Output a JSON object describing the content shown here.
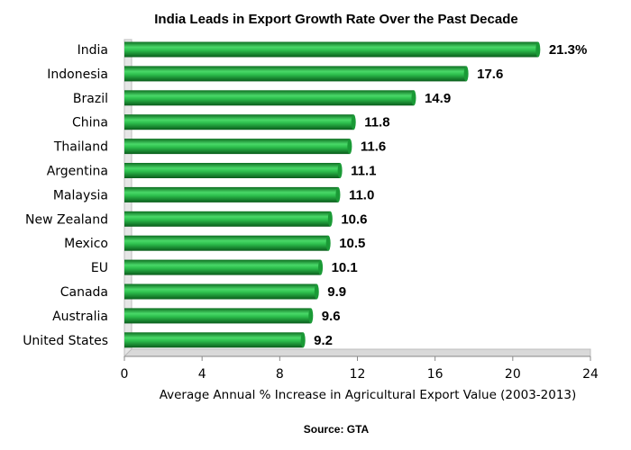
{
  "chart_data": {
    "type": "bar",
    "orientation": "horizontal",
    "title": "India Leads in Export Growth Rate Over the Past Decade",
    "xlabel": "Average Annual % Increase in Agricultural Export Value (2003-2013)",
    "source": "Source: GTA",
    "categories": [
      "India",
      "Indonesia",
      "Brazil",
      "China",
      "Thailand",
      "Argentina",
      "Malaysia",
      "New Zealand",
      "Mexico",
      "EU",
      "Canada",
      "Australia",
      "United States"
    ],
    "values": [
      21.3,
      17.6,
      14.9,
      11.8,
      11.6,
      11.1,
      11.0,
      10.6,
      10.5,
      10.1,
      9.9,
      9.6,
      9.2
    ],
    "data_labels": [
      "21.3%",
      "17.6",
      "14.9",
      "11.8",
      "11.6",
      "11.1",
      "11.0",
      "10.6",
      "10.5",
      "10.1",
      "9.9",
      "9.6",
      "9.2"
    ],
    "xlim": [
      0,
      24
    ],
    "xticks": [
      0,
      4,
      8,
      12,
      16,
      20,
      24
    ],
    "xtick_labels": [
      "0",
      "4",
      "8",
      "12",
      "16",
      "20",
      "24"
    ],
    "grid": false,
    "bar_color": "#1faa3c"
  }
}
